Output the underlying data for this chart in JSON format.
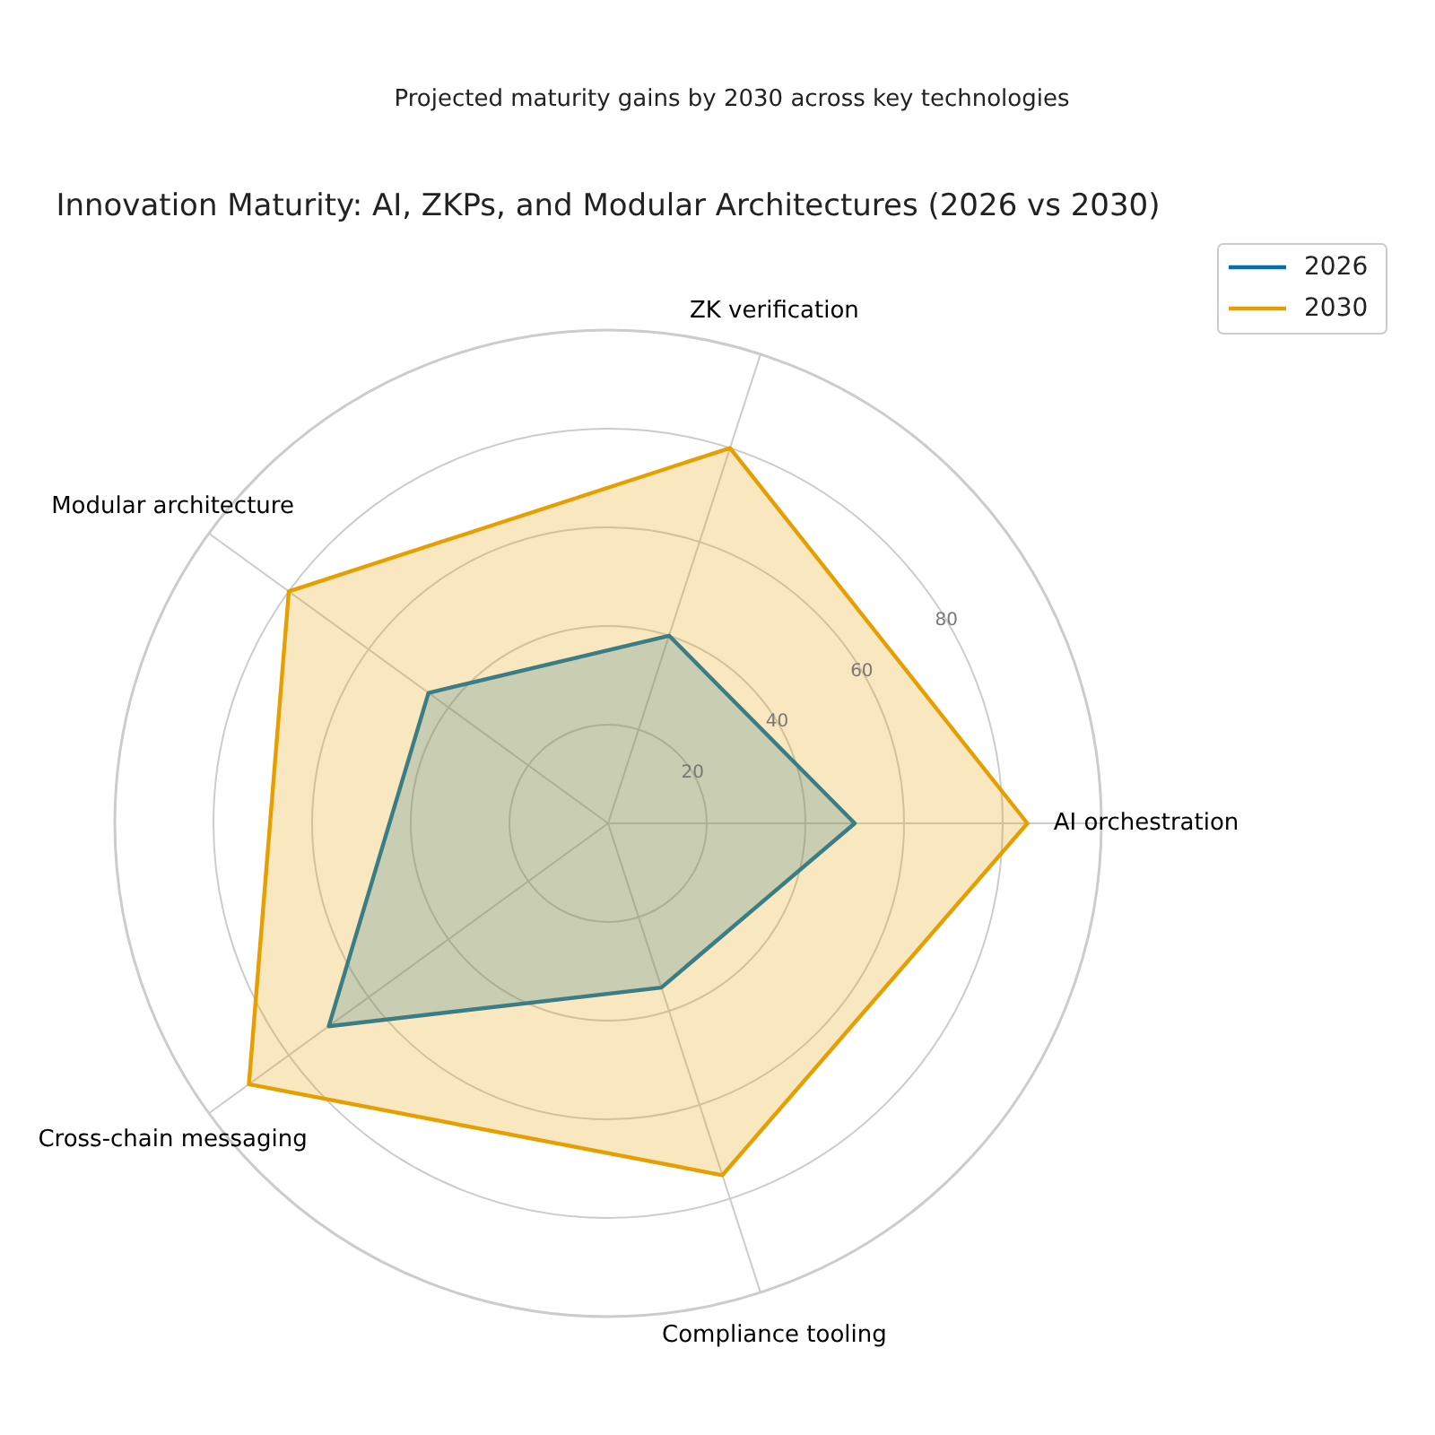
{
  "chart_data": {
    "type": "radar",
    "title": "Innovation Maturity: AI, ZKPs, and Modular Architectures (2026 vs 2030)",
    "subtitle": "Projected maturity gains by 2030 across key technologies",
    "categories": [
      "ZK verification",
      "AI orchestration",
      "Compliance tooling",
      "Cross-chain messaging",
      "Modular architecture"
    ],
    "series": [
      {
        "name": "2026",
        "color": "#0072b2",
        "values": [
          40,
          50,
          35,
          70,
          45
        ]
      },
      {
        "name": "2030",
        "color": "#e69f00",
        "values": [
          80,
          85,
          75,
          90,
          80
        ]
      }
    ],
    "ylim": [
      0,
      100
    ],
    "yticks": [
      20,
      40,
      60,
      80
    ],
    "grid": true,
    "legend": "top right"
  }
}
